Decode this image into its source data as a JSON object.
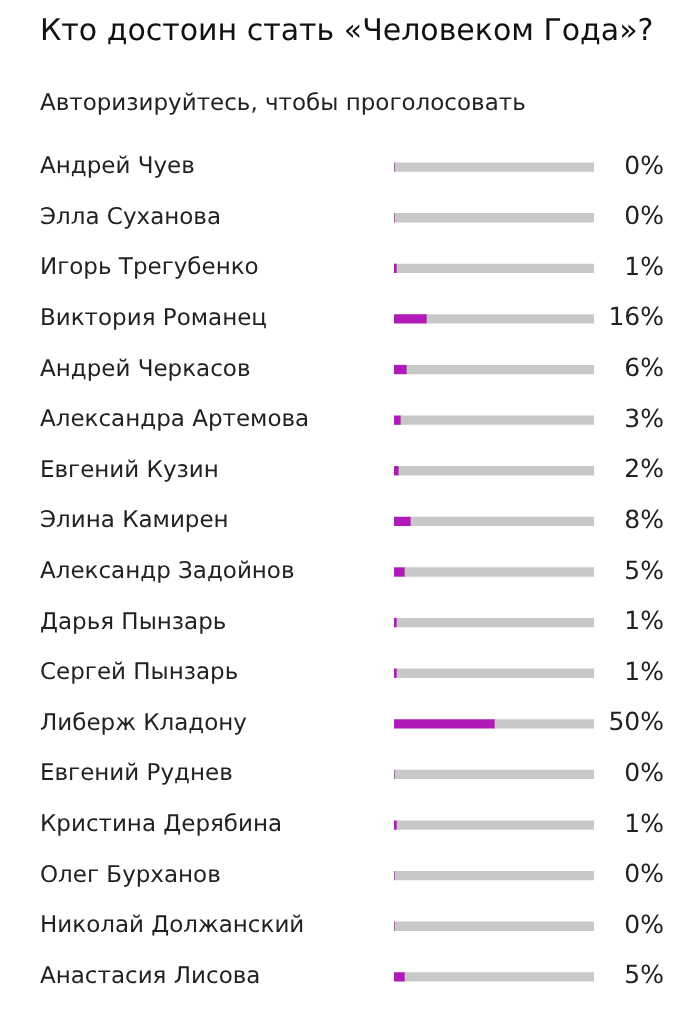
{
  "chart_data": {
    "type": "bar",
    "orientation": "horizontal",
    "stacked": true,
    "title": "Кто достоин стать «Человеком Года»?",
    "subtitle": "Авторизируйтесь, чтобы проголосовать",
    "categories": [
      "Андрей Чуев",
      "Элла Суханова",
      "Игорь Трегубенко",
      "Виктория Романец",
      "Андрей Черкасов",
      "Александра Артемова",
      "Евгений Кузин",
      "Элина Камирен",
      "Александр Задойнов",
      "Дарья Пынзарь",
      "Сергей Пынзарь",
      "Либерж Кладону",
      "Евгений Руднев",
      "Кристина Дерябина",
      "Олег Бурханов",
      "Николай Должанский",
      "Анастасия Лисова"
    ],
    "series": [
      {
        "color": "#b01ab8",
        "values": [
          0,
          0,
          1,
          16,
          6,
          3,
          2,
          8,
          5,
          1,
          1,
          50,
          0,
          1,
          0,
          0,
          5
        ],
        "value_labels": [
          "0%",
          "0%",
          "1%",
          "16%",
          "6%",
          "3%",
          "2%",
          "8%",
          "5%",
          "1%",
          "1%",
          "50%",
          "0%",
          "1%",
          "0%",
          "0%",
          "5%"
        ]
      },
      {
        "color": "#c8c8c8",
        "values": [
          100,
          100,
          99,
          84,
          94,
          97,
          98,
          92,
          95,
          99,
          99,
          50,
          100,
          99,
          100,
          100,
          95
        ]
      }
    ],
    "xlim": [
      0,
      100
    ],
    "tick_labels": "y"
  }
}
